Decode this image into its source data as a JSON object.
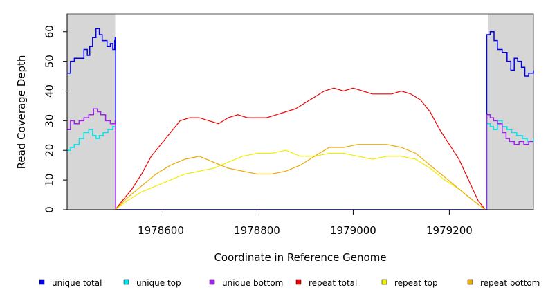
{
  "chart_data": {
    "type": "line",
    "title": "",
    "xlabel": "Coordinate in Reference Genome",
    "ylabel": "Read Coverage Depth",
    "xlim": [
      1978405,
      1979375
    ],
    "ylim": [
      0,
      66
    ],
    "x_ticks": [
      1978600,
      1978800,
      1979000,
      1979200
    ],
    "x_tick_labels": [
      "1978600",
      "1978800",
      "1979000",
      "1979200"
    ],
    "y_ticks": [
      0,
      10,
      20,
      30,
      40,
      50,
      60
    ],
    "y_tick_labels": [
      "0",
      "10",
      "20",
      "30",
      "40",
      "50",
      "60"
    ],
    "shaded_regions": [
      [
        1978405,
        1978505
      ],
      [
        1979280,
        1979375
      ]
    ],
    "series": [
      {
        "name": "unique total",
        "color": "#0000ee",
        "stepped": true,
        "points": [
          [
            1978405,
            46
          ],
          [
            1978412,
            50
          ],
          [
            1978420,
            51
          ],
          [
            1978430,
            51
          ],
          [
            1978440,
            54
          ],
          [
            1978447,
            52
          ],
          [
            1978452,
            55
          ],
          [
            1978458,
            58
          ],
          [
            1978465,
            61
          ],
          [
            1978472,
            59
          ],
          [
            1978478,
            57
          ],
          [
            1978488,
            55
          ],
          [
            1978495,
            56
          ],
          [
            1978500,
            54
          ],
          [
            1978504,
            57
          ],
          [
            1978505,
            58
          ],
          [
            1978506,
            0
          ],
          [
            1979277,
            0
          ],
          [
            1979278,
            59
          ],
          [
            1979285,
            60
          ],
          [
            1979293,
            57
          ],
          [
            1979300,
            54
          ],
          [
            1979310,
            53
          ],
          [
            1979320,
            50
          ],
          [
            1979328,
            47
          ],
          [
            1979335,
            51
          ],
          [
            1979342,
            50
          ],
          [
            1979350,
            48
          ],
          [
            1979357,
            45
          ],
          [
            1979365,
            46
          ],
          [
            1979375,
            47
          ]
        ]
      },
      {
        "name": "unique top",
        "color": "#00e5ee",
        "stepped": true,
        "points": [
          [
            1978405,
            20
          ],
          [
            1978412,
            21
          ],
          [
            1978420,
            22
          ],
          [
            1978430,
            24
          ],
          [
            1978440,
            26
          ],
          [
            1978450,
            27
          ],
          [
            1978458,
            25
          ],
          [
            1978465,
            24
          ],
          [
            1978472,
            25
          ],
          [
            1978480,
            26
          ],
          [
            1978490,
            27
          ],
          [
            1978500,
            28
          ],
          [
            1978505,
            28
          ],
          [
            1978506,
            0
          ],
          [
            1979277,
            0
          ],
          [
            1979278,
            29
          ],
          [
            1979285,
            28
          ],
          [
            1979292,
            27
          ],
          [
            1979300,
            30
          ],
          [
            1979310,
            28
          ],
          [
            1979320,
            27
          ],
          [
            1979330,
            26
          ],
          [
            1979340,
            25
          ],
          [
            1979352,
            24
          ],
          [
            1979362,
            23
          ],
          [
            1979375,
            24
          ]
        ]
      },
      {
        "name": "unique bottom",
        "color": "#a020f0",
        "stepped": true,
        "points": [
          [
            1978405,
            27
          ],
          [
            1978412,
            30
          ],
          [
            1978420,
            29
          ],
          [
            1978430,
            30
          ],
          [
            1978440,
            31
          ],
          [
            1978450,
            32
          ],
          [
            1978460,
            34
          ],
          [
            1978468,
            33
          ],
          [
            1978475,
            32
          ],
          [
            1978485,
            30
          ],
          [
            1978495,
            29
          ],
          [
            1978505,
            30
          ],
          [
            1978506,
            0
          ],
          [
            1979277,
            0
          ],
          [
            1979278,
            32
          ],
          [
            1979285,
            31
          ],
          [
            1979292,
            30
          ],
          [
            1979300,
            29
          ],
          [
            1979310,
            26
          ],
          [
            1979318,
            24
          ],
          [
            1979325,
            23
          ],
          [
            1979335,
            22
          ],
          [
            1979345,
            23
          ],
          [
            1979355,
            22
          ],
          [
            1979365,
            23
          ],
          [
            1979375,
            23
          ]
        ]
      },
      {
        "name": "repeat total",
        "color": "#ee0000",
        "stepped": false,
        "points": [
          [
            1978505,
            0
          ],
          [
            1978520,
            3
          ],
          [
            1978540,
            7
          ],
          [
            1978560,
            12
          ],
          [
            1978580,
            18
          ],
          [
            1978600,
            22
          ],
          [
            1978620,
            26
          ],
          [
            1978640,
            30
          ],
          [
            1978660,
            31
          ],
          [
            1978680,
            31
          ],
          [
            1978700,
            30
          ],
          [
            1978720,
            29
          ],
          [
            1978740,
            31
          ],
          [
            1978760,
            32
          ],
          [
            1978780,
            31
          ],
          [
            1978800,
            31
          ],
          [
            1978820,
            31
          ],
          [
            1978840,
            32
          ],
          [
            1978860,
            33
          ],
          [
            1978880,
            34
          ],
          [
            1978900,
            36
          ],
          [
            1978920,
            38
          ],
          [
            1978940,
            40
          ],
          [
            1978960,
            41
          ],
          [
            1978980,
            40
          ],
          [
            1979000,
            41
          ],
          [
            1979020,
            40
          ],
          [
            1979040,
            39
          ],
          [
            1979060,
            39
          ],
          [
            1979080,
            39
          ],
          [
            1979100,
            40
          ],
          [
            1979120,
            39
          ],
          [
            1979140,
            37
          ],
          [
            1979160,
            33
          ],
          [
            1979180,
            27
          ],
          [
            1979200,
            22
          ],
          [
            1979220,
            17
          ],
          [
            1979240,
            10
          ],
          [
            1979260,
            3
          ],
          [
            1979275,
            0
          ]
        ]
      },
      {
        "name": "repeat top",
        "color": "#eeee00",
        "stepped": false,
        "points": [
          [
            1978505,
            0
          ],
          [
            1978530,
            3
          ],
          [
            1978560,
            6
          ],
          [
            1978590,
            8
          ],
          [
            1978620,
            10
          ],
          [
            1978650,
            12
          ],
          [
            1978680,
            13
          ],
          [
            1978710,
            14
          ],
          [
            1978740,
            16
          ],
          [
            1978770,
            18
          ],
          [
            1978800,
            19
          ],
          [
            1978830,
            19
          ],
          [
            1978860,
            20
          ],
          [
            1978890,
            18
          ],
          [
            1978920,
            18
          ],
          [
            1978950,
            19
          ],
          [
            1978980,
            19
          ],
          [
            1979010,
            18
          ],
          [
            1979040,
            17
          ],
          [
            1979070,
            18
          ],
          [
            1979100,
            18
          ],
          [
            1979130,
            17
          ],
          [
            1979160,
            14
          ],
          [
            1979190,
            10
          ],
          [
            1979220,
            7
          ],
          [
            1979250,
            3
          ],
          [
            1979275,
            0
          ]
        ]
      },
      {
        "name": "repeat bottom",
        "color": "#eeaa00",
        "stepped": false,
        "points": [
          [
            1978505,
            0
          ],
          [
            1978530,
            4
          ],
          [
            1978560,
            8
          ],
          [
            1978590,
            12
          ],
          [
            1978620,
            15
          ],
          [
            1978650,
            17
          ],
          [
            1978680,
            18
          ],
          [
            1978710,
            16
          ],
          [
            1978740,
            14
          ],
          [
            1978770,
            13
          ],
          [
            1978800,
            12
          ],
          [
            1978830,
            12
          ],
          [
            1978860,
            13
          ],
          [
            1978890,
            15
          ],
          [
            1978920,
            18
          ],
          [
            1978950,
            21
          ],
          [
            1978980,
            21
          ],
          [
            1979010,
            22
          ],
          [
            1979040,
            22
          ],
          [
            1979070,
            22
          ],
          [
            1979100,
            21
          ],
          [
            1979130,
            19
          ],
          [
            1979160,
            15
          ],
          [
            1979190,
            11
          ],
          [
            1979220,
            7
          ],
          [
            1979250,
            3
          ],
          [
            1979275,
            0
          ]
        ]
      }
    ],
    "legend": {
      "position": "bottom",
      "entries": [
        {
          "label": "unique total",
          "color": "#0000ee"
        },
        {
          "label": "unique top",
          "color": "#00e5ee"
        },
        {
          "label": "unique bottom",
          "color": "#a020f0"
        },
        {
          "label": "repeat total",
          "color": "#ee0000"
        },
        {
          "label": "repeat top",
          "color": "#eeee00"
        },
        {
          "label": "repeat bottom",
          "color": "#eeaa00"
        }
      ]
    }
  }
}
